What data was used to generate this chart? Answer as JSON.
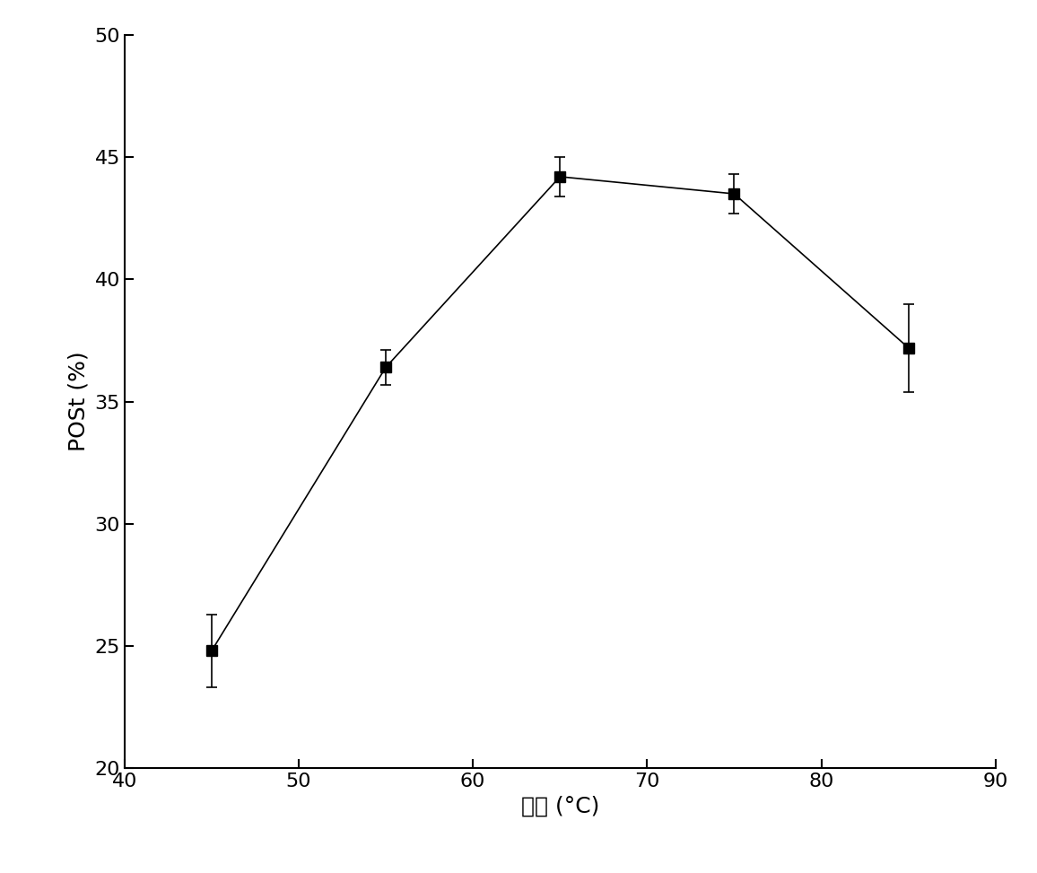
{
  "x": [
    45,
    55,
    65,
    75,
    85
  ],
  "y": [
    24.8,
    36.4,
    44.2,
    43.5,
    37.2
  ],
  "yerr": [
    1.5,
    0.7,
    0.8,
    0.8,
    1.8
  ],
  "xlabel": "温度 (°C)",
  "ylabel": "POSt (%)",
  "xlim": [
    40,
    90
  ],
  "ylim": [
    20,
    50
  ],
  "xticks": [
    40,
    50,
    60,
    70,
    80,
    90
  ],
  "yticks": [
    20,
    25,
    30,
    35,
    40,
    45,
    50
  ],
  "line_color": "#000000",
  "marker_color": "#000000",
  "marker_size": 8,
  "line_width": 1.2,
  "capsize": 4,
  "elinewidth": 1.2,
  "background_color": "#ffffff",
  "label_fontsize": 18,
  "tick_fontsize": 16
}
